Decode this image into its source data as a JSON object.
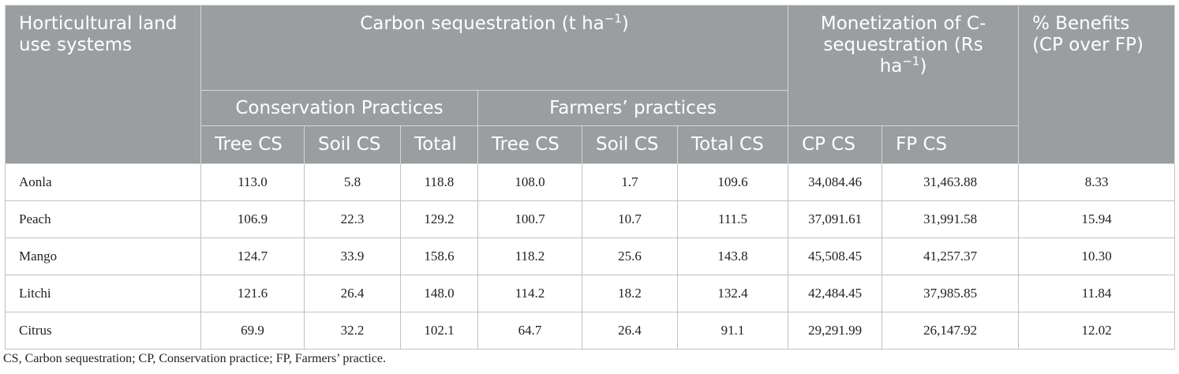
{
  "table": {
    "header": {
      "row_label": "Horticultural land use systems",
      "carbon_title": [
        "Carbon sequestration (t ha",
        "−1",
        ")"
      ],
      "monetization_title": [
        "Monetization of C-sequestration (Rs ha",
        "−1",
        ")"
      ],
      "benefits_title": "% Benefits (CP over FP)",
      "groups": [
        "Conservation Practices",
        "Farmers’ practices"
      ],
      "columns": [
        "Tree CS",
        "Soil CS",
        "Total",
        "Tree CS",
        "Soil CS",
        "Total CS",
        "CP CS",
        "FP CS"
      ]
    },
    "rows": [
      [
        "Aonla",
        "113.0",
        "5.8",
        "118.8",
        "108.0",
        "1.7",
        "109.6",
        "34,084.46",
        "31,463.88",
        "8.33"
      ],
      [
        "Peach",
        "106.9",
        "22.3",
        "129.2",
        "100.7",
        "10.7",
        "111.5",
        "37,091.61",
        "31,991.58",
        "15.94"
      ],
      [
        "Mango",
        "124.7",
        "33.9",
        "158.6",
        "118.2",
        "25.6",
        "143.8",
        "45,508.45",
        "41,257.37",
        "10.30"
      ],
      [
        "Litchi",
        "121.6",
        "26.4",
        "148.0",
        "114.2",
        "18.2",
        "132.4",
        "42,484.45",
        "37,985.85",
        "11.84"
      ],
      [
        "Citrus",
        "69.9",
        "32.2",
        "102.1",
        "64.7",
        "26.4",
        "91.1",
        "29,291.99",
        "26,147.92",
        "12.02"
      ]
    ],
    "footnote": "CS, Carbon sequestration; CP, Conservation practice; FP, Farmers’ practice."
  }
}
